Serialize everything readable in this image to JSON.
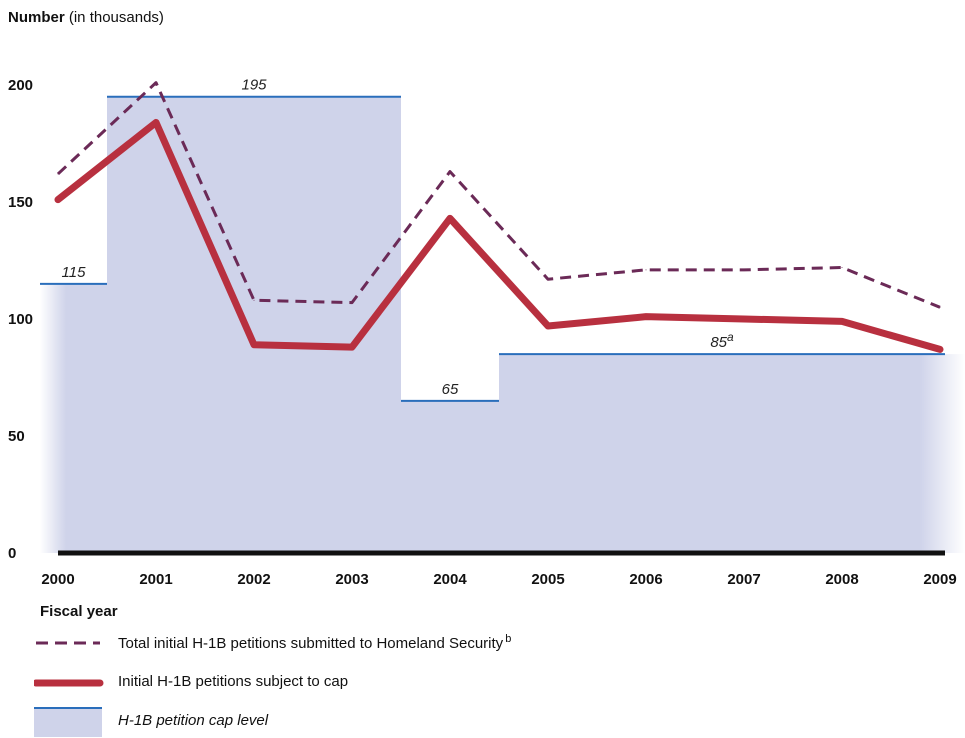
{
  "chart_data": {
    "type": "line",
    "ylabel_bold": "Number",
    "ylabel_unit": "(in thousands)",
    "xlabel": "Fiscal year",
    "categories": [
      "2000",
      "2001",
      "2002",
      "2003",
      "2004",
      "2005",
      "2006",
      "2007",
      "2008",
      "2009"
    ],
    "yticks": [
      "0",
      "50",
      "100",
      "150",
      "200"
    ],
    "ylim": [
      0,
      200
    ],
    "series": [
      {
        "name": "Total initial H-1B petitions submitted to Homeland Security",
        "footnote": "b",
        "style": "dashed",
        "color": "#6b2a57",
        "values": [
          162,
          201,
          108,
          107,
          163,
          117,
          121,
          121,
          122,
          105
        ]
      },
      {
        "name": "Initial H-1B petitions subject to cap",
        "style": "solid-thick",
        "color": "#b8303f",
        "values": [
          151,
          184,
          89,
          88,
          143,
          97,
          101,
          100,
          99,
          87
        ]
      }
    ],
    "cap": {
      "name": "H-1B petition cap level",
      "color": "#2a6ebb",
      "fill": "#cfd3ea",
      "steps": [
        {
          "from": "2000",
          "to": "2000",
          "value": 115,
          "label": "115"
        },
        {
          "from": "2001",
          "to": "2003",
          "value": 195,
          "label": "195"
        },
        {
          "from": "2004",
          "to": "2004",
          "value": 65,
          "label": "65"
        },
        {
          "from": "2005",
          "to": "2009",
          "value": 85,
          "label": "85",
          "footnote": "a"
        }
      ]
    },
    "grid": false
  }
}
